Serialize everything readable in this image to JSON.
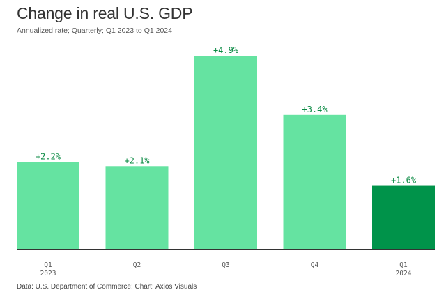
{
  "header": {
    "title": "Change in real U.S. GDP",
    "subtitle": "Annualized rate; Quarterly; Q1 2023 to Q1 2024"
  },
  "footer": {
    "source": "Data: U.S. Department of Commerce; Chart: Axios Visuals"
  },
  "colors": {
    "bar": "#65e3a1",
    "bar_highlight": "#00934a",
    "label": "#0a8a43",
    "baseline": "#333333"
  },
  "chart_data": {
    "type": "bar",
    "title": "Change in real U.S. GDP",
    "subtitle": "Annualized rate; Quarterly; Q1 2023 to Q1 2024",
    "categories": [
      "Q1",
      "Q2",
      "Q3",
      "Q4",
      "Q1"
    ],
    "year_labels": [
      "2023",
      "",
      "",
      "",
      "2024"
    ],
    "values": [
      2.2,
      2.1,
      4.9,
      3.4,
      1.6
    ],
    "value_labels": [
      "+2.2%",
      "+2.1%",
      "+4.9%",
      "+3.4%",
      "+1.6%"
    ],
    "highlight_index": 4,
    "ylim": [
      0,
      4.9
    ],
    "xlabel": "",
    "ylabel": "",
    "grid": false,
    "legend": "none"
  }
}
